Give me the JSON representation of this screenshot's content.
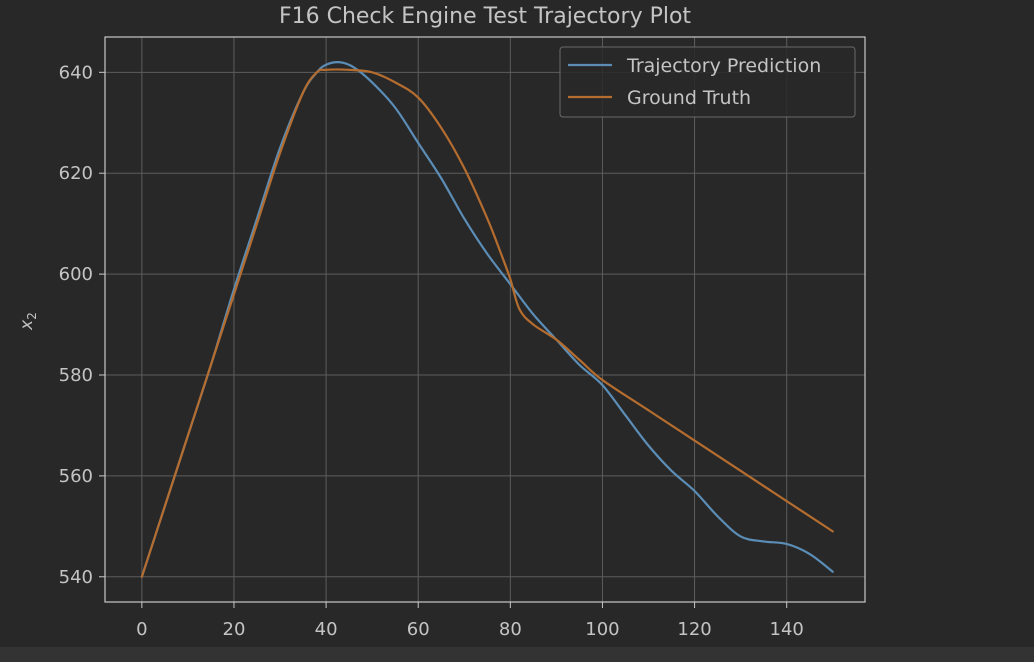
{
  "colors": {
    "background": "#282828",
    "plot_background": "#282828",
    "grid": "#5c5c5c",
    "axes": "#c8c8c8",
    "text": "#c4c4c4",
    "prediction": "#5b8db6",
    "ground_truth": "#b56d2f"
  },
  "chart_data": {
    "type": "line",
    "title": "F16 Check Engine Test Trajectory Plot",
    "xlabel": "",
    "ylabel": "x₂",
    "xlim": [
      -8,
      157
    ],
    "ylim": [
      535,
      647
    ],
    "xticks": [
      0,
      20,
      40,
      60,
      80,
      100,
      120,
      140
    ],
    "yticks": [
      540,
      560,
      580,
      600,
      620,
      640
    ],
    "grid": true,
    "legend_position": "top-right",
    "series": [
      {
        "name": "Trajectory Prediction",
        "color": "#5b8db6",
        "x": [
          0,
          5,
          10,
          15,
          20,
          25,
          30,
          35,
          38,
          40,
          43,
          46,
          50,
          55,
          60,
          65,
          70,
          75,
          80,
          85,
          90,
          95,
          100,
          105,
          110,
          115,
          120,
          125,
          130,
          135,
          140,
          145,
          150
        ],
        "y": [
          540,
          554,
          568,
          582,
          597,
          611,
          625,
          636,
          640,
          641.5,
          642,
          641,
          638,
          633,
          626,
          619,
          611,
          604,
          598,
          592,
          587,
          582,
          578,
          572,
          566,
          561,
          557,
          552,
          548,
          547,
          546.5,
          544.5,
          541
        ]
      },
      {
        "name": "Ground Truth",
        "color": "#b56d2f",
        "x": [
          0,
          5,
          10,
          15,
          20,
          25,
          30,
          35,
          38,
          40,
          45,
          50,
          55,
          60,
          65,
          70,
          75,
          78,
          80,
          82,
          85,
          90,
          95,
          100,
          110,
          120,
          130,
          140,
          150
        ],
        "y": [
          540,
          554,
          568,
          582,
          596,
          610,
          624,
          636,
          640,
          640.5,
          640.5,
          640,
          638,
          635,
          629,
          621,
          611,
          604,
          599,
          593,
          590,
          587,
          583,
          579,
          573,
          567,
          561,
          555,
          549
        ]
      }
    ]
  }
}
